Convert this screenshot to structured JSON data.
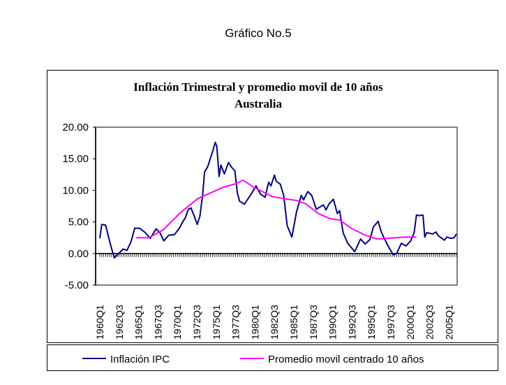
{
  "page_title": "Gráfico No.5",
  "chart_data": {
    "type": "line",
    "title": "Inflación Trimestral y promedio movil de 10 años",
    "subtitle": "Australia",
    "xlabel": "",
    "ylabel": "",
    "ylim": [
      -5,
      20
    ],
    "yticks": [
      "20.00",
      "15.00",
      "10.00",
      "5.00",
      "0.00",
      "-5.00"
    ],
    "ytick_values": [
      20,
      15,
      10,
      5,
      0,
      -5
    ],
    "x_start": "1960Q1",
    "x_quarters": 185,
    "xtick_labels": [
      "1960Q1",
      "1962Q3",
      "1965Q1",
      "1967Q3",
      "1970Q1",
      "1972Q3",
      "1975Q1",
      "1977Q3",
      "1980Q1",
      "1982Q3",
      "1985Q1",
      "1987Q3",
      "1990Q1",
      "1992Q3",
      "1995Q1",
      "1997Q3",
      "2000Q1",
      "2002Q3",
      "2005Q1"
    ],
    "xtick_quarter_index": [
      0,
      10,
      20,
      30,
      40,
      50,
      60,
      70,
      80,
      90,
      100,
      110,
      120,
      130,
      140,
      150,
      160,
      170,
      180
    ],
    "legend_position": "bottom",
    "series": [
      {
        "name": "Inflación IPC",
        "color": "#000080",
        "points_quarter_index_value": [
          [
            0,
            2.4
          ],
          [
            1,
            4.6
          ],
          [
            3,
            4.5
          ],
          [
            5.5,
            1.4
          ],
          [
            7.5,
            -0.7
          ],
          [
            12,
            0.7
          ],
          [
            14,
            0.5
          ],
          [
            16,
            1.8
          ],
          [
            18,
            4.0
          ],
          [
            20.5,
            4.0
          ],
          [
            23.5,
            3.3
          ],
          [
            26,
            2.4
          ],
          [
            29,
            3.9
          ],
          [
            31,
            3.3
          ],
          [
            33,
            2.0
          ],
          [
            35.5,
            2.9
          ],
          [
            38.5,
            3.0
          ],
          [
            41,
            4.0
          ],
          [
            42.7,
            5.0
          ],
          [
            44,
            5.6
          ],
          [
            45.7,
            7.0
          ],
          [
            47,
            7.2
          ],
          [
            48.7,
            5.9
          ],
          [
            50.2,
            4.6
          ],
          [
            51.6,
            5.9
          ],
          [
            53,
            9.2
          ],
          [
            54,
            12.9
          ],
          [
            55.7,
            13.8
          ],
          [
            57,
            15.1
          ],
          [
            58.2,
            16.2
          ],
          [
            59.5,
            17.6
          ],
          [
            60.3,
            17.0
          ],
          [
            61.5,
            12.2
          ],
          [
            62.4,
            14.0
          ],
          [
            64.2,
            12.6
          ],
          [
            66.3,
            14.4
          ],
          [
            67.8,
            13.7
          ],
          [
            69.6,
            13.1
          ],
          [
            70.9,
            9.6
          ],
          [
            72,
            8.3
          ],
          [
            74.5,
            7.8
          ],
          [
            78,
            9.4
          ],
          [
            80.5,
            10.7
          ],
          [
            82.8,
            9.4
          ],
          [
            85.2,
            8.9
          ],
          [
            87,
            11.3
          ],
          [
            88.2,
            10.7
          ],
          [
            90,
            12.4
          ],
          [
            91,
            11.4
          ],
          [
            93,
            11.0
          ],
          [
            94.8,
            9.2
          ],
          [
            96.6,
            4.4
          ],
          [
            99,
            2.6
          ],
          [
            101.4,
            6.6
          ],
          [
            103.8,
            9.2
          ],
          [
            105,
            8.5
          ],
          [
            107.2,
            9.8
          ],
          [
            109.2,
            9.2
          ],
          [
            111.6,
            7.0
          ],
          [
            115.2,
            7.7
          ],
          [
            116.6,
            6.9
          ],
          [
            118.2,
            7.9
          ],
          [
            120.4,
            8.6
          ],
          [
            122.4,
            6.3
          ],
          [
            123.6,
            6.8
          ],
          [
            125.4,
            3.3
          ],
          [
            127.8,
            1.6
          ],
          [
            131.4,
            0.3
          ],
          [
            134.4,
            2.3
          ],
          [
            136.8,
            1.5
          ],
          [
            139.2,
            2.2
          ],
          [
            141,
            4.2
          ],
          [
            143.4,
            5.1
          ],
          [
            145.2,
            3.3
          ],
          [
            148.2,
            1.4
          ],
          [
            151.2,
            -0.2
          ],
          [
            153,
            0.0
          ],
          [
            155.4,
            1.6
          ],
          [
            157.8,
            1.2
          ],
          [
            160.2,
            2.0
          ],
          [
            162,
            3.3
          ],
          [
            163.2,
            6.1
          ],
          [
            164.4,
            6.0
          ],
          [
            166.6,
            6.1
          ],
          [
            167.5,
            2.6
          ],
          [
            168.5,
            3.3
          ],
          [
            171.5,
            3.1
          ],
          [
            173.3,
            3.4
          ],
          [
            174.5,
            2.8
          ],
          [
            177.6,
            2.1
          ],
          [
            178.8,
            2.6
          ],
          [
            181.2,
            2.4
          ],
          [
            182.6,
            2.5
          ],
          [
            183.8,
            3.1
          ]
        ]
      },
      {
        "name": "Promedio movil centrado 10 años",
        "color": "#FF00FF",
        "points_quarter_index_value": [
          [
            18.7,
            2.5
          ],
          [
            25.2,
            2.5
          ],
          [
            32.5,
            3.7
          ],
          [
            41,
            6.3
          ],
          [
            50.5,
            8.7
          ],
          [
            63.7,
            10.5
          ],
          [
            69.6,
            11.0
          ],
          [
            73.9,
            11.6
          ],
          [
            79.3,
            10.5
          ],
          [
            88.9,
            9.0
          ],
          [
            94.8,
            8.7
          ],
          [
            101.4,
            8.4
          ],
          [
            106,
            7.9
          ],
          [
            112.8,
            6.3
          ],
          [
            118.8,
            5.5
          ],
          [
            123.6,
            5.3
          ],
          [
            129.6,
            4.0
          ],
          [
            136.8,
            2.9
          ],
          [
            142.8,
            2.3
          ],
          [
            148.8,
            2.4
          ],
          [
            157.2,
            2.6
          ],
          [
            163.2,
            2.6
          ]
        ]
      }
    ]
  }
}
